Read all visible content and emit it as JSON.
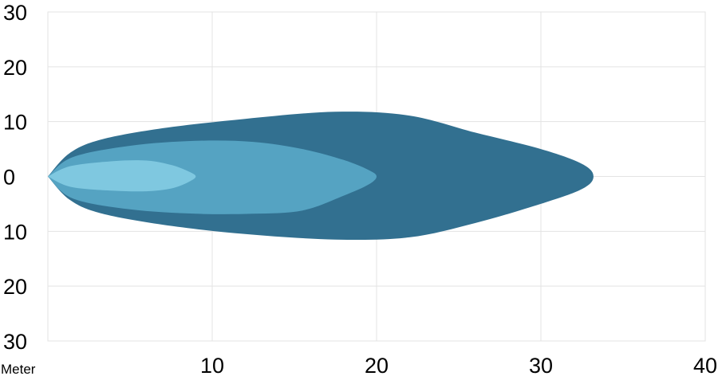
{
  "chart_data": {
    "type": "area",
    "title": "",
    "xlabel": "Meter",
    "ylabel": "",
    "xlim": [
      0,
      40
    ],
    "ylim": [
      -30,
      30
    ],
    "grid": true,
    "x_ticks": [
      {
        "value": 10,
        "label": "10"
      },
      {
        "value": 20,
        "label": "20"
      },
      {
        "value": 30,
        "label": "30"
      },
      {
        "value": 40,
        "label": "40"
      }
    ],
    "y_ticks": [
      {
        "value": 30,
        "label": "30"
      },
      {
        "value": 20,
        "label": "20"
      },
      {
        "value": 10,
        "label": "10"
      },
      {
        "value": 0,
        "label": "0"
      },
      {
        "value": -10,
        "label": "10"
      },
      {
        "value": -20,
        "label": "20"
      },
      {
        "value": -30,
        "label": "30"
      }
    ],
    "series": [
      {
        "color": "#327090",
        "x": [
          0,
          1.3,
          3.2,
          7,
          12,
          17.5,
          22,
          26,
          30,
          32.5,
          33.2
        ],
        "upper": [
          0,
          4.2,
          6.7,
          8.8,
          10.5,
          11.8,
          11.1,
          8,
          5,
          2.3,
          0
        ],
        "lower": [
          0,
          -4.2,
          -6.7,
          -8.8,
          -10.5,
          -11.5,
          -11.1,
          -8.5,
          -5,
          -2.3,
          0
        ]
      },
      {
        "color": "#55a3c2",
        "x": [
          0,
          1.5,
          5,
          9,
          12.5,
          15.5,
          18,
          19.5,
          20
        ],
        "upper": [
          0,
          3.5,
          5.6,
          6.5,
          6.3,
          5,
          3,
          1.2,
          0
        ],
        "lower": [
          0,
          -4,
          -6,
          -6.8,
          -6.8,
          -6.2,
          -3.5,
          -1.5,
          0
        ]
      },
      {
        "color": "#7fc8e0",
        "x": [
          0,
          1.4,
          4,
          6,
          7.5,
          8.5,
          9
        ],
        "upper": [
          0,
          1.9,
          2.8,
          2.9,
          2.1,
          1,
          0
        ],
        "lower": [
          0,
          -1.9,
          -2.6,
          -2.7,
          -2.2,
          -1.1,
          0
        ]
      }
    ]
  }
}
